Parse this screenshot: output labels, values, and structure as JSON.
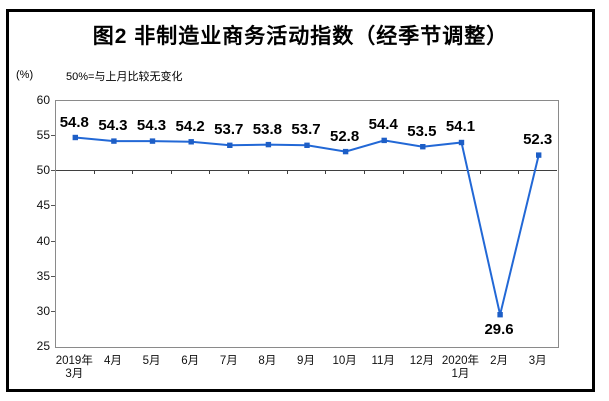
{
  "title": "图2 非制造业商务活动指数（经季节调整）",
  "unit_label": "(%)",
  "axis_note": "50%=与上月比较无变化",
  "colors": {
    "line": "#2268d6",
    "marker": "#1d5ec6",
    "reference_line": "#3f3f3f",
    "plot_border": "#8a8a8a",
    "frame_border": "#000000"
  },
  "chart_data": {
    "type": "line",
    "title": "图2 非制造业商务活动指数（经季节调整）",
    "subtitle": "50%=与上月比较无变化",
    "ylabel": "(%)",
    "categories": [
      "2019年\n3月",
      "4月",
      "5月",
      "6月",
      "7月",
      "8月",
      "9月",
      "10月",
      "11月",
      "12月",
      "2020年\n1月",
      "2月",
      "3月"
    ],
    "values": [
      54.8,
      54.3,
      54.3,
      54.2,
      53.7,
      53.8,
      53.7,
      52.8,
      54.4,
      53.5,
      54.1,
      29.6,
      52.3
    ],
    "ylim": [
      25,
      60
    ],
    "yticks": [
      60,
      55,
      50,
      45,
      40,
      35,
      30,
      25
    ],
    "reference_line": 50,
    "grid": false,
    "legend": "none",
    "marker": "square",
    "data_labels": true
  }
}
